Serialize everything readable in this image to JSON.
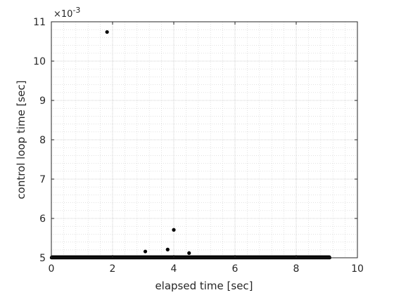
{
  "chart_data": {
    "type": "scatter",
    "xlabel": "elapsed time [sec]",
    "ylabel": "control loop time [sec]",
    "xlim": [
      0,
      10
    ],
    "ylim": [
      5,
      11
    ],
    "x_ticks": [
      "0",
      "2",
      "4",
      "6",
      "8",
      "10"
    ],
    "y_ticks": [
      "5",
      "6",
      "7",
      "8",
      "9",
      "10",
      "11"
    ],
    "y_exponent_base": "×10",
    "y_exponent_power": "-3",
    "y_scale_factor": 0.001,
    "grid": true,
    "minor_grid": true,
    "series": [
      {
        "baseline_band": {
          "x_range": [
            0,
            9.1
          ],
          "y_values": [
            5.0,
            5.02
          ]
        },
        "outliers": [
          {
            "x": 1.82,
            "y": 10.74
          },
          {
            "x": 3.07,
            "y": 5.16
          },
          {
            "x": 3.8,
            "y": 5.21
          },
          {
            "x": 4.0,
            "y": 5.71
          },
          {
            "x": 4.5,
            "y": 5.12
          }
        ]
      }
    ],
    "colors": {
      "marker": "#000000",
      "grid": "#d0d0d0",
      "axis": "#262626"
    }
  }
}
